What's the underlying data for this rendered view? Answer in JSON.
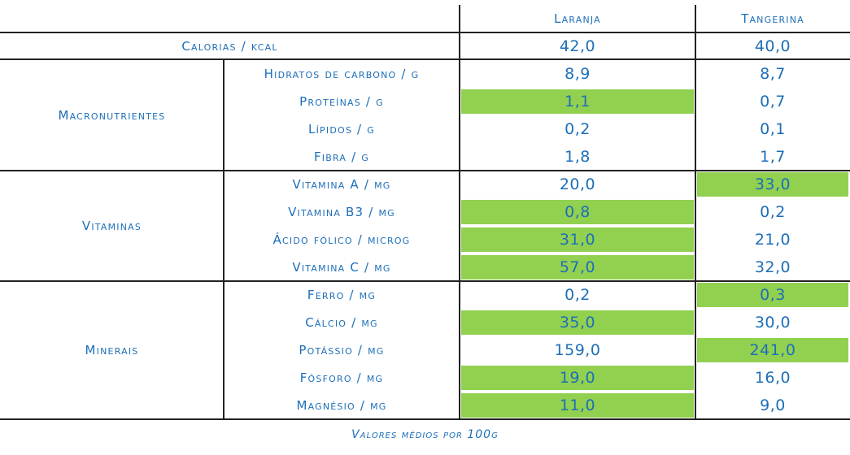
{
  "header": {
    "laranja": "Laranja",
    "tangerina": "Tangerina"
  },
  "calorias": {
    "label": "Calorias / kcal",
    "laranja": "42,0",
    "tangerina": "40,0"
  },
  "groups": [
    {
      "name": "Macronutrientes",
      "rows": [
        {
          "label": "Hidratos de carbono / g",
          "laranja": "8,9",
          "tangerina": "8,7",
          "hl": ""
        },
        {
          "label": "Proteínas / g",
          "laranja": "1,1",
          "tangerina": "0,7",
          "hl": "laranja"
        },
        {
          "label": "Lípidos / g",
          "laranja": "0,2",
          "tangerina": "0,1",
          "hl": ""
        },
        {
          "label": "Fibra / g",
          "laranja": "1,8",
          "tangerina": "1,7",
          "hl": ""
        }
      ]
    },
    {
      "name": "Vitaminas",
      "rows": [
        {
          "label": "Vitamina A / mg",
          "laranja": "20,0",
          "tangerina": "33,0",
          "hl": "tangerina"
        },
        {
          "label": "Vitamina B3 / mg",
          "laranja": "0,8",
          "tangerina": "0,2",
          "hl": "laranja"
        },
        {
          "label": "Ácido fólico / microg",
          "laranja": "31,0",
          "tangerina": "21,0",
          "hl": "laranja"
        },
        {
          "label": "Vitamina C / mg",
          "laranja": "57,0",
          "tangerina": "32,0",
          "hl": "laranja"
        }
      ]
    },
    {
      "name": "Minerais",
      "rows": [
        {
          "label": "Ferro / mg",
          "laranja": "0,2",
          "tangerina": "0,3",
          "hl": "tangerina"
        },
        {
          "label": "Cálcio / mg",
          "laranja": "35,0",
          "tangerina": "30,0",
          "hl": "laranja"
        },
        {
          "label": "Potássio / mg",
          "laranja": "159,0",
          "tangerina": "241,0",
          "hl": "tangerina"
        },
        {
          "label": "Fósforo / mg",
          "laranja": "19,0",
          "tangerina": "16,0",
          "hl": "laranja"
        },
        {
          "label": "Magnésio / mg",
          "laranja": "11,0",
          "tangerina": "9,0",
          "hl": "laranja"
        }
      ]
    }
  ],
  "caption": "Valores médios por 100g",
  "colors": {
    "text": "#1d6fb8",
    "highlight": "#92d050",
    "lines": "#222222"
  }
}
